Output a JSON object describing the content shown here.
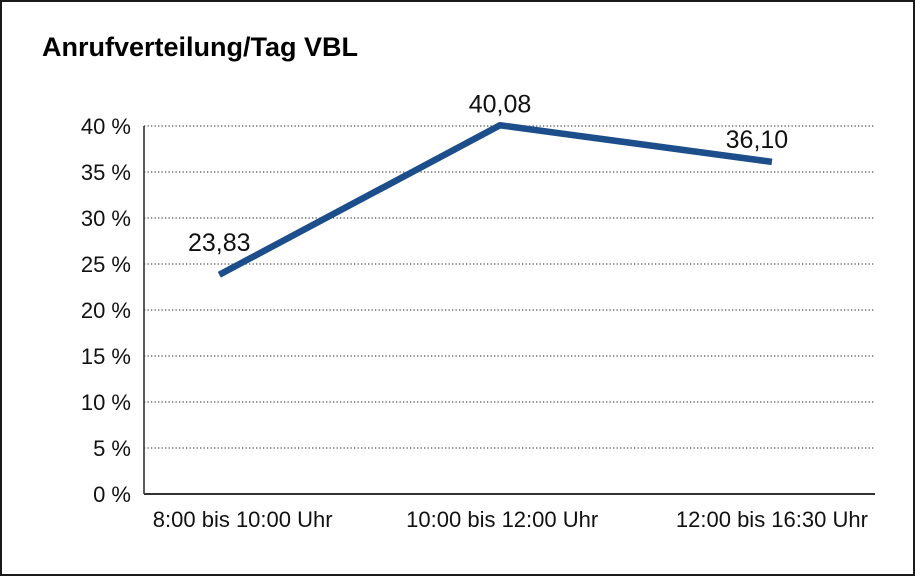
{
  "chart_data": {
    "type": "line",
    "title": "Anrufverteilung/Tag VBL",
    "categories": [
      "8:00 bis 10:00 Uhr",
      "10:00 bis 12:00 Uhr",
      "12:00 bis 16:30 Uhr"
    ],
    "values": [
      23.83,
      40.08,
      36.1
    ],
    "point_labels": [
      "23,83",
      "40,08",
      "36,10"
    ],
    "ylim": [
      0,
      40
    ],
    "ytick_step": 5,
    "ytick_labels": [
      "0 %",
      "5 %",
      "10 %",
      "15 %",
      "20 %",
      "25 %",
      "30 %",
      "35 %",
      "40 %"
    ],
    "xlabel": "",
    "ylabel": "",
    "legend": "none",
    "grid": "horizontal-dotted",
    "colors": {
      "line": "#1b4e8a",
      "text": "#111111",
      "axis": "#333333",
      "grid": "#4f4f4f",
      "background": "#ffffff",
      "border": "#1a1a1a"
    }
  }
}
